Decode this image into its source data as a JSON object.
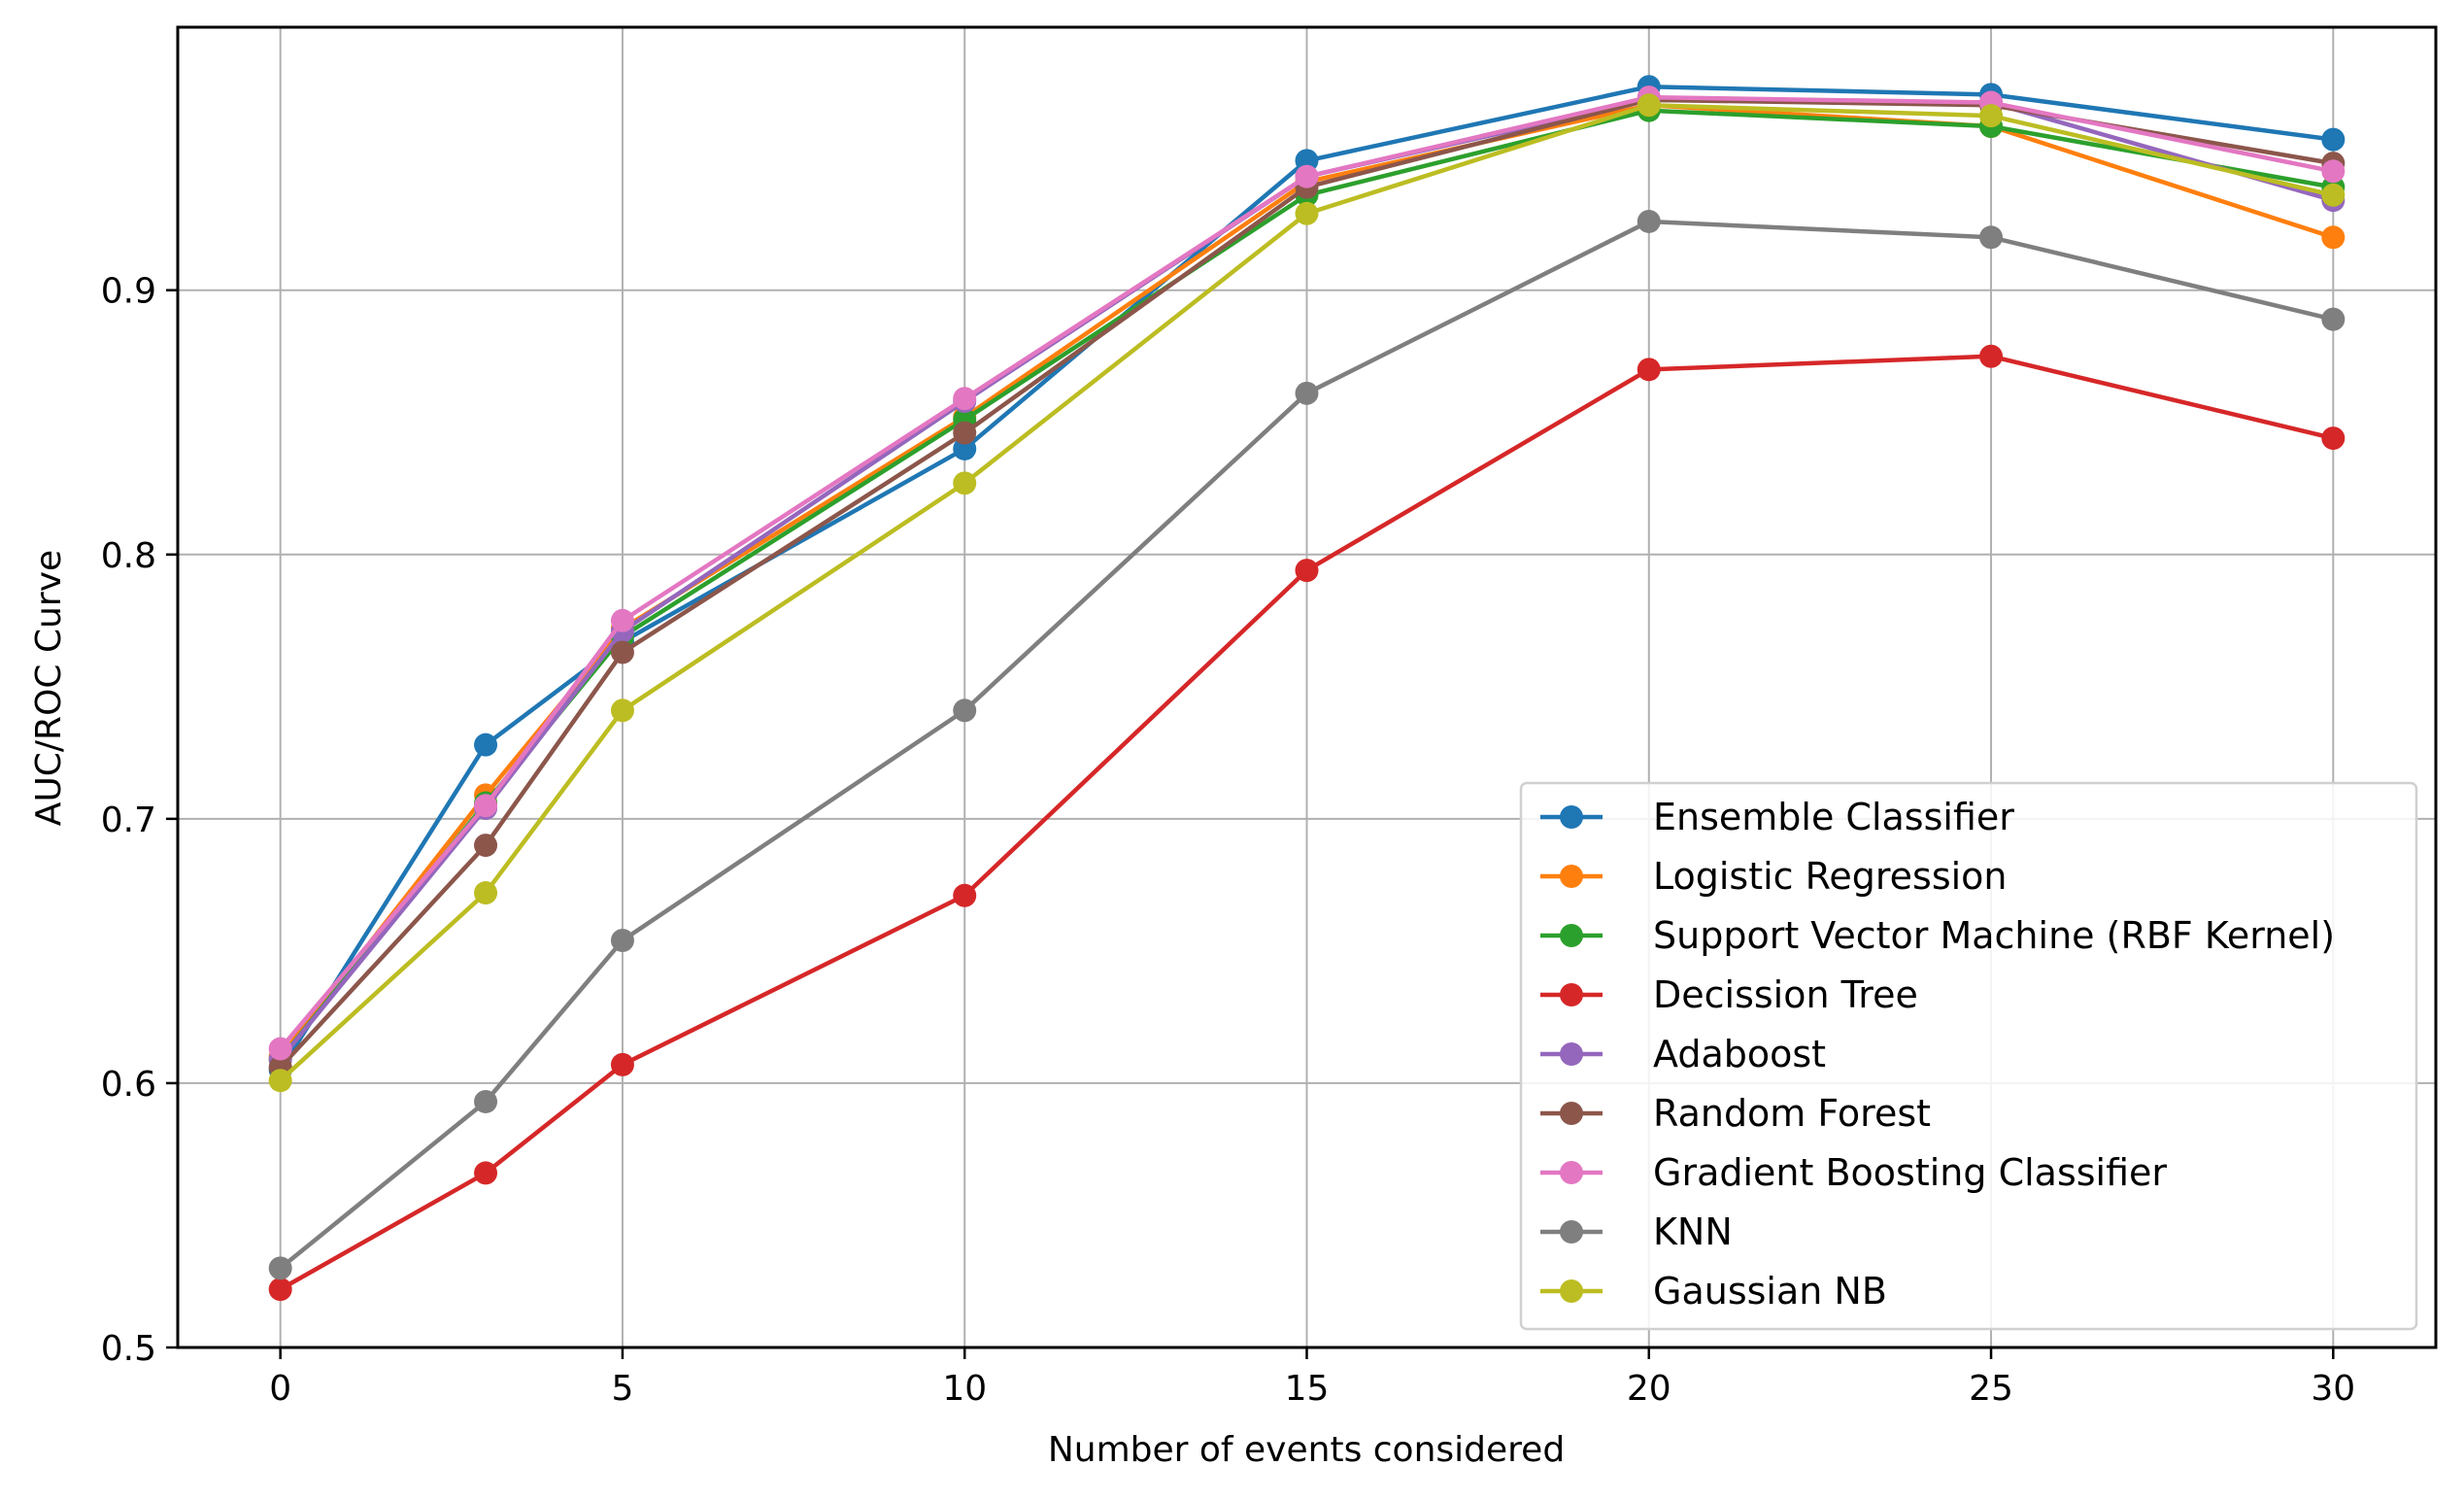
{
  "chart_data": {
    "type": "line",
    "title": "",
    "xlabel": "Number of events considered",
    "ylabel": "AUC/ROC Curve",
    "x": [
      0,
      3,
      5,
      10,
      15,
      20,
      25,
      30
    ],
    "xlim": [
      -1.5,
      31.5
    ],
    "ylim": [
      0.5,
      0.9995
    ],
    "xticks": [
      0,
      5,
      10,
      15,
      20,
      25,
      30
    ],
    "xtick_labels": [
      "0",
      "5",
      "10",
      "15",
      "20",
      "25",
      "30"
    ],
    "yticks": [
      0.5,
      0.6,
      0.7,
      0.8,
      0.9
    ],
    "ytick_labels": [
      "0.5",
      "0.6",
      "0.7",
      "0.8",
      "0.9"
    ],
    "grid": true,
    "legend_position": "lower-right",
    "series": [
      {
        "name": "Ensemble Classifier",
        "color": "#1f77b4",
        "values": [
          0.605,
          0.728,
          0.767,
          0.84,
          0.949,
          0.977,
          0.974,
          0.957
        ]
      },
      {
        "name": "Logistic Regression",
        "color": "#ff7f0e",
        "values": [
          0.61,
          0.709,
          0.772,
          0.852,
          0.941,
          0.97,
          0.962,
          0.92
        ]
      },
      {
        "name": "Support Vector Machine (RBF Kernel)",
        "color": "#2ca02c",
        "values": [
          0.609,
          0.706,
          0.769,
          0.851,
          0.936,
          0.968,
          0.962,
          0.939
        ]
      },
      {
        "name": "Decission Tree",
        "color": "#d62728",
        "values": [
          0.522,
          0.566,
          0.607,
          0.671,
          0.794,
          0.87,
          0.875,
          0.844
        ]
      },
      {
        "name": "Adaboost",
        "color": "#9467bd",
        "values": [
          0.609,
          0.704,
          0.771,
          0.858,
          0.943,
          0.972,
          0.971,
          0.934
        ]
      },
      {
        "name": "Random Forest",
        "color": "#8c564b",
        "values": [
          0.606,
          0.69,
          0.763,
          0.846,
          0.939,
          0.972,
          0.97,
          0.948
        ]
      },
      {
        "name": "Gradient Boosting Classifier",
        "color": "#e377c2",
        "values": [
          0.613,
          0.705,
          0.775,
          0.859,
          0.943,
          0.973,
          0.971,
          0.945
        ]
      },
      {
        "name": "KNN",
        "color": "#7f7f7f",
        "values": [
          0.53,
          0.593,
          0.654,
          0.741,
          0.861,
          0.926,
          0.92,
          0.889
        ]
      },
      {
        "name": "Gaussian NB",
        "color": "#bcbd22",
        "values": [
          0.601,
          0.672,
          0.741,
          0.827,
          0.929,
          0.97,
          0.966,
          0.936
        ]
      }
    ]
  }
}
